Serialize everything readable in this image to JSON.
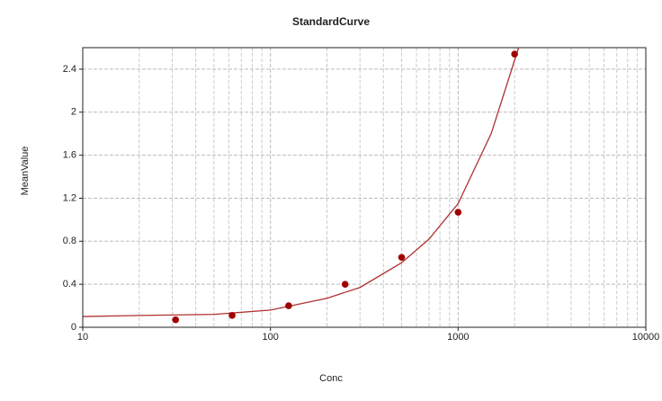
{
  "chart_data": {
    "type": "scatter",
    "title": "StandardCurve",
    "x_label": "Conc",
    "y_label": "MeanValue",
    "x_log": true,
    "grid": true,
    "xlim": [
      10,
      10000
    ],
    "xticks": [
      10,
      100,
      1000,
      10000
    ],
    "ylim": [
      0,
      2.6
    ],
    "yticks": [
      0,
      0.4,
      0.8,
      1.2,
      1.6,
      2,
      2.4
    ],
    "points": {
      "color": "#a00000",
      "x": [
        31.25,
        62.5,
        125,
        250,
        500,
        1000,
        2000
      ],
      "values": [
        0.07,
        0.11,
        0.2,
        0.4,
        0.65,
        1.07,
        2.54
      ]
    },
    "fit": {
      "color": "#b03030",
      "x": [
        10,
        20,
        50,
        100,
        200,
        300,
        500,
        700,
        1000,
        1500,
        2100
      ],
      "values": [
        0.1,
        0.11,
        0.12,
        0.16,
        0.27,
        0.37,
        0.6,
        0.82,
        1.15,
        1.8,
        2.6
      ]
    }
  }
}
